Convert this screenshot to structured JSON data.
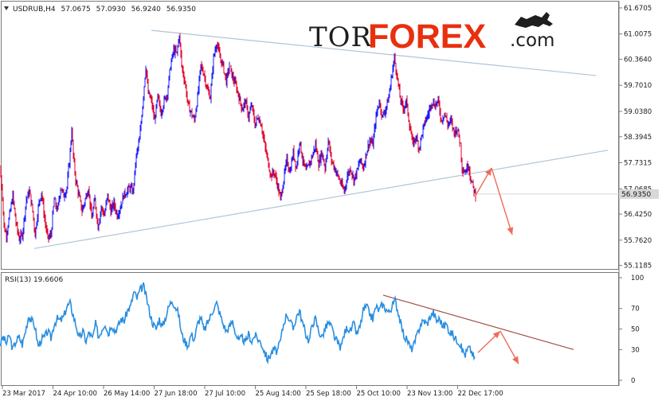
{
  "chart_data": {
    "type": "candlestick",
    "symbol_header": {
      "symbol": "USDRUB,H4",
      "open": "57.0675",
      "high": "57.0930",
      "low": "56.9240",
      "close": "56.9350"
    },
    "price_axis": {
      "ticks": [
        "61.6705",
        "61.0075",
        "60.3640",
        "59.7010",
        "59.0380",
        "58.3945",
        "57.7315",
        "57.0685",
        "56.4250",
        "55.7620",
        "55.1185"
      ],
      "current_price_label": "56.9350",
      "ylim": [
        55.05,
        61.75
      ]
    },
    "time_axis": {
      "ticks": [
        "23 Mar 2017",
        "24 Apr 10:00",
        "26 May 14:00",
        "27 Jun 18:00",
        "27 Jul 10:00",
        "25 Aug 14:00",
        "25 Sep 18:00",
        "25 Oct 10:00",
        "23 Nov 13:00",
        "22 Dec 17:00"
      ]
    },
    "price_series": [
      {
        "t": 0,
        "p": 57.6
      },
      {
        "t": 3,
        "p": 56.9
      },
      {
        "t": 5,
        "p": 56.1
      },
      {
        "t": 8,
        "p": 55.9
      },
      {
        "t": 12,
        "p": 56.4
      },
      {
        "t": 16,
        "p": 56.9
      },
      {
        "t": 20,
        "p": 56.2
      },
      {
        "t": 24,
        "p": 55.8
      },
      {
        "t": 28,
        "p": 55.9
      },
      {
        "t": 33,
        "p": 56.8
      },
      {
        "t": 37,
        "p": 57.0
      },
      {
        "t": 41,
        "p": 56.5
      },
      {
        "t": 44,
        "p": 55.9
      },
      {
        "t": 48,
        "p": 56.6
      },
      {
        "t": 52,
        "p": 57.0
      },
      {
        "t": 56,
        "p": 56.3
      },
      {
        "t": 60,
        "p": 55.8
      },
      {
        "t": 64,
        "p": 55.9
      },
      {
        "t": 68,
        "p": 56.8
      },
      {
        "t": 72,
        "p": 56.5
      },
      {
        "t": 76,
        "p": 57.1
      },
      {
        "t": 80,
        "p": 56.9
      },
      {
        "t": 84,
        "p": 57.1
      },
      {
        "t": 88,
        "p": 58.0
      },
      {
        "t": 90,
        "p": 58.6
      },
      {
        "t": 92,
        "p": 57.9
      },
      {
        "t": 95,
        "p": 57.3
      },
      {
        "t": 99,
        "p": 56.9
      },
      {
        "t": 103,
        "p": 56.5
      },
      {
        "t": 107,
        "p": 56.8
      },
      {
        "t": 111,
        "p": 57.1
      },
      {
        "t": 115,
        "p": 56.3
      },
      {
        "t": 119,
        "p": 56.8
      },
      {
        "t": 123,
        "p": 56.1
      },
      {
        "t": 127,
        "p": 56.6
      },
      {
        "t": 131,
        "p": 56.4
      },
      {
        "t": 135,
        "p": 56.9
      },
      {
        "t": 139,
        "p": 56.5
      },
      {
        "t": 143,
        "p": 56.7
      },
      {
        "t": 147,
        "p": 56.4
      },
      {
        "t": 151,
        "p": 56.6
      },
      {
        "t": 155,
        "p": 56.9
      },
      {
        "t": 159,
        "p": 57.0
      },
      {
        "t": 163,
        "p": 57.1
      },
      {
        "t": 167,
        "p": 57.0
      },
      {
        "t": 171,
        "p": 57.9
      },
      {
        "t": 175,
        "p": 58.3
      },
      {
        "t": 179,
        "p": 59.2
      },
      {
        "t": 183,
        "p": 60.2
      },
      {
        "t": 186,
        "p": 59.5
      },
      {
        "t": 190,
        "p": 59.3
      },
      {
        "t": 194,
        "p": 58.8
      },
      {
        "t": 198,
        "p": 59.4
      },
      {
        "t": 202,
        "p": 59.0
      },
      {
        "t": 206,
        "p": 59.3
      },
      {
        "t": 210,
        "p": 59.5
      },
      {
        "t": 214,
        "p": 60.2
      },
      {
        "t": 218,
        "p": 60.6
      },
      {
        "t": 222,
        "p": 60.5
      },
      {
        "t": 225,
        "p": 61.0
      },
      {
        "t": 228,
        "p": 60.2
      },
      {
        "t": 232,
        "p": 59.8
      },
      {
        "t": 236,
        "p": 59.2
      },
      {
        "t": 240,
        "p": 59.0
      },
      {
        "t": 244,
        "p": 58.8
      },
      {
        "t": 248,
        "p": 59.4
      },
      {
        "t": 252,
        "p": 60.2
      },
      {
        "t": 256,
        "p": 60.0
      },
      {
        "t": 260,
        "p": 59.6
      },
      {
        "t": 264,
        "p": 59.4
      },
      {
        "t": 268,
        "p": 60.4
      },
      {
        "t": 272,
        "p": 60.8
      },
      {
        "t": 276,
        "p": 60.4
      },
      {
        "t": 280,
        "p": 60.2
      },
      {
        "t": 284,
        "p": 59.8
      },
      {
        "t": 288,
        "p": 60.2
      },
      {
        "t": 292,
        "p": 59.9
      },
      {
        "t": 296,
        "p": 59.7
      },
      {
        "t": 300,
        "p": 59.4
      },
      {
        "t": 304,
        "p": 59.1
      },
      {
        "t": 308,
        "p": 59.3
      },
      {
        "t": 312,
        "p": 58.9
      },
      {
        "t": 316,
        "p": 59.2
      },
      {
        "t": 320,
        "p": 58.7
      },
      {
        "t": 324,
        "p": 58.9
      },
      {
        "t": 328,
        "p": 58.7
      },
      {
        "t": 332,
        "p": 58.2
      },
      {
        "t": 336,
        "p": 57.8
      },
      {
        "t": 340,
        "p": 57.4
      },
      {
        "t": 344,
        "p": 57.5
      },
      {
        "t": 348,
        "p": 57.2
      },
      {
        "t": 352,
        "p": 56.8
      },
      {
        "t": 356,
        "p": 57.3
      },
      {
        "t": 360,
        "p": 57.8
      },
      {
        "t": 364,
        "p": 57.5
      },
      {
        "t": 368,
        "p": 58.0
      },
      {
        "t": 372,
        "p": 57.6
      },
      {
        "t": 376,
        "p": 58.3
      },
      {
        "t": 380,
        "p": 57.8
      },
      {
        "t": 384,
        "p": 57.5
      },
      {
        "t": 388,
        "p": 57.7
      },
      {
        "t": 392,
        "p": 57.9
      },
      {
        "t": 396,
        "p": 58.2
      },
      {
        "t": 400,
        "p": 57.7
      },
      {
        "t": 404,
        "p": 58.0
      },
      {
        "t": 408,
        "p": 57.6
      },
      {
        "t": 412,
        "p": 58.3
      },
      {
        "t": 416,
        "p": 57.8
      },
      {
        "t": 420,
        "p": 57.6
      },
      {
        "t": 424,
        "p": 57.4
      },
      {
        "t": 428,
        "p": 57.2
      },
      {
        "t": 432,
        "p": 57.0
      },
      {
        "t": 436,
        "p": 57.4
      },
      {
        "t": 440,
        "p": 57.6
      },
      {
        "t": 444,
        "p": 57.3
      },
      {
        "t": 448,
        "p": 57.5
      },
      {
        "t": 452,
        "p": 57.8
      },
      {
        "t": 456,
        "p": 57.6
      },
      {
        "t": 460,
        "p": 58.0
      },
      {
        "t": 464,
        "p": 58.3
      },
      {
        "t": 468,
        "p": 58.2
      },
      {
        "t": 472,
        "p": 58.9
      },
      {
        "t": 476,
        "p": 59.3
      },
      {
        "t": 480,
        "p": 58.9
      },
      {
        "t": 484,
        "p": 59.1
      },
      {
        "t": 488,
        "p": 59.4
      },
      {
        "t": 492,
        "p": 60.0
      },
      {
        "t": 495,
        "p": 60.4
      },
      {
        "t": 498,
        "p": 60.0
      },
      {
        "t": 502,
        "p": 59.4
      },
      {
        "t": 506,
        "p": 59.1
      },
      {
        "t": 510,
        "p": 59.3
      },
      {
        "t": 514,
        "p": 58.7
      },
      {
        "t": 518,
        "p": 58.2
      },
      {
        "t": 522,
        "p": 58.4
      },
      {
        "t": 526,
        "p": 58.1
      },
      {
        "t": 530,
        "p": 58.5
      },
      {
        "t": 534,
        "p": 58.8
      },
      {
        "t": 538,
        "p": 59.0
      },
      {
        "t": 542,
        "p": 59.3
      },
      {
        "t": 546,
        "p": 59.2
      },
      {
        "t": 550,
        "p": 59.3
      },
      {
        "t": 554,
        "p": 58.8
      },
      {
        "t": 558,
        "p": 59.0
      },
      {
        "t": 562,
        "p": 58.7
      },
      {
        "t": 566,
        "p": 58.8
      },
      {
        "t": 570,
        "p": 58.5
      },
      {
        "t": 574,
        "p": 58.6
      },
      {
        "t": 578,
        "p": 58.2
      },
      {
        "t": 580,
        "p": 57.6
      },
      {
        "t": 584,
        "p": 57.5
      },
      {
        "t": 588,
        "p": 57.7
      },
      {
        "t": 591,
        "p": 57.3
      },
      {
        "t": 594,
        "p": 57.1
      },
      {
        "t": 597,
        "p": 56.9
      }
    ],
    "forecast_arrows": {
      "price": [
        {
          "t": 597,
          "p": 56.9
        },
        {
          "t": 617,
          "p": 57.6
        },
        {
          "t": 643,
          "p": 55.9
        }
      ],
      "rsi": [
        {
          "t": 600,
          "v": 27
        },
        {
          "t": 628,
          "v": 48
        },
        {
          "t": 651,
          "v": 16
        }
      ]
    },
    "trendlines": [
      {
        "name": "resistance",
        "from": {
          "t": 190,
          "p": 61.1
        },
        "to": {
          "t": 748,
          "p": 59.95
        }
      },
      {
        "name": "support",
        "from": {
          "t": 43,
          "p": 55.55
        },
        "to": {
          "t": 763,
          "p": 58.05
        }
      }
    ],
    "rsi": {
      "label": "RSI(13) 19.6606",
      "ticks": [
        "100",
        "70",
        "50",
        "30",
        "0"
      ],
      "ylim": [
        0,
        100
      ],
      "trendline": {
        "from": {
          "t": 481,
          "v": 83
        },
        "to": {
          "t": 720,
          "v": 30
        }
      },
      "series": [
        {
          "t": 0,
          "v": 35
        },
        {
          "t": 4,
          "v": 42
        },
        {
          "t": 8,
          "v": 36
        },
        {
          "t": 12,
          "v": 44
        },
        {
          "t": 16,
          "v": 30
        },
        {
          "t": 20,
          "v": 38
        },
        {
          "t": 24,
          "v": 42
        },
        {
          "t": 28,
          "v": 35
        },
        {
          "t": 32,
          "v": 48
        },
        {
          "t": 36,
          "v": 63
        },
        {
          "t": 40,
          "v": 58
        },
        {
          "t": 44,
          "v": 52
        },
        {
          "t": 48,
          "v": 33
        },
        {
          "t": 52,
          "v": 40
        },
        {
          "t": 56,
          "v": 42
        },
        {
          "t": 60,
          "v": 48
        },
        {
          "t": 64,
          "v": 41
        },
        {
          "t": 68,
          "v": 55
        },
        {
          "t": 72,
          "v": 60
        },
        {
          "t": 76,
          "v": 58
        },
        {
          "t": 80,
          "v": 62
        },
        {
          "t": 84,
          "v": 72
        },
        {
          "t": 88,
          "v": 75
        },
        {
          "t": 92,
          "v": 63
        },
        {
          "t": 96,
          "v": 52
        },
        {
          "t": 100,
          "v": 40
        },
        {
          "t": 104,
          "v": 48
        },
        {
          "t": 108,
          "v": 38
        },
        {
          "t": 112,
          "v": 47
        },
        {
          "t": 116,
          "v": 40
        },
        {
          "t": 120,
          "v": 55
        },
        {
          "t": 124,
          "v": 42
        },
        {
          "t": 128,
          "v": 50
        },
        {
          "t": 132,
          "v": 56
        },
        {
          "t": 136,
          "v": 45
        },
        {
          "t": 140,
          "v": 55
        },
        {
          "t": 144,
          "v": 48
        },
        {
          "t": 148,
          "v": 52
        },
        {
          "t": 152,
          "v": 60
        },
        {
          "t": 156,
          "v": 58
        },
        {
          "t": 160,
          "v": 68
        },
        {
          "t": 164,
          "v": 72
        },
        {
          "t": 168,
          "v": 86
        },
        {
          "t": 172,
          "v": 80
        },
        {
          "t": 176,
          "v": 88
        },
        {
          "t": 180,
          "v": 92
        },
        {
          "t": 184,
          "v": 80
        },
        {
          "t": 188,
          "v": 66
        },
        {
          "t": 192,
          "v": 55
        },
        {
          "t": 196,
          "v": 50
        },
        {
          "t": 200,
          "v": 60
        },
        {
          "t": 204,
          "v": 52
        },
        {
          "t": 208,
          "v": 62
        },
        {
          "t": 212,
          "v": 72
        },
        {
          "t": 216,
          "v": 78
        },
        {
          "t": 220,
          "v": 72
        },
        {
          "t": 224,
          "v": 65
        },
        {
          "t": 228,
          "v": 45
        },
        {
          "t": 232,
          "v": 38
        },
        {
          "t": 236,
          "v": 34
        },
        {
          "t": 240,
          "v": 45
        },
        {
          "t": 244,
          "v": 40
        },
        {
          "t": 248,
          "v": 55
        },
        {
          "t": 252,
          "v": 62
        },
        {
          "t": 256,
          "v": 48
        },
        {
          "t": 260,
          "v": 55
        },
        {
          "t": 264,
          "v": 62
        },
        {
          "t": 268,
          "v": 70
        },
        {
          "t": 272,
          "v": 75
        },
        {
          "t": 276,
          "v": 65
        },
        {
          "t": 280,
          "v": 55
        },
        {
          "t": 284,
          "v": 48
        },
        {
          "t": 288,
          "v": 52
        },
        {
          "t": 292,
          "v": 58
        },
        {
          "t": 296,
          "v": 45
        },
        {
          "t": 300,
          "v": 38
        },
        {
          "t": 304,
          "v": 42
        },
        {
          "t": 308,
          "v": 36
        },
        {
          "t": 312,
          "v": 45
        },
        {
          "t": 316,
          "v": 38
        },
        {
          "t": 320,
          "v": 44
        },
        {
          "t": 324,
          "v": 40
        },
        {
          "t": 328,
          "v": 36
        },
        {
          "t": 332,
          "v": 28
        },
        {
          "t": 336,
          "v": 20
        },
        {
          "t": 340,
          "v": 26
        },
        {
          "t": 344,
          "v": 30
        },
        {
          "t": 348,
          "v": 28
        },
        {
          "t": 352,
          "v": 38
        },
        {
          "t": 356,
          "v": 55
        },
        {
          "t": 360,
          "v": 65
        },
        {
          "t": 364,
          "v": 58
        },
        {
          "t": 368,
          "v": 50
        },
        {
          "t": 372,
          "v": 62
        },
        {
          "t": 376,
          "v": 68
        },
        {
          "t": 380,
          "v": 55
        },
        {
          "t": 384,
          "v": 45
        },
        {
          "t": 388,
          "v": 38
        },
        {
          "t": 392,
          "v": 55
        },
        {
          "t": 396,
          "v": 60
        },
        {
          "t": 400,
          "v": 48
        },
        {
          "t": 404,
          "v": 42
        },
        {
          "t": 408,
          "v": 50
        },
        {
          "t": 412,
          "v": 56
        },
        {
          "t": 416,
          "v": 52
        },
        {
          "t": 420,
          "v": 42
        },
        {
          "t": 424,
          "v": 36
        },
        {
          "t": 428,
          "v": 32
        },
        {
          "t": 432,
          "v": 45
        },
        {
          "t": 436,
          "v": 52
        },
        {
          "t": 440,
          "v": 48
        },
        {
          "t": 444,
          "v": 55
        },
        {
          "t": 448,
          "v": 45
        },
        {
          "t": 452,
          "v": 52
        },
        {
          "t": 456,
          "v": 68
        },
        {
          "t": 460,
          "v": 72
        },
        {
          "t": 464,
          "v": 65
        },
        {
          "t": 468,
          "v": 60
        },
        {
          "t": 472,
          "v": 72
        },
        {
          "t": 476,
          "v": 68
        },
        {
          "t": 480,
          "v": 74
        },
        {
          "t": 484,
          "v": 70
        },
        {
          "t": 488,
          "v": 66
        },
        {
          "t": 492,
          "v": 72
        },
        {
          "t": 496,
          "v": 78
        },
        {
          "t": 500,
          "v": 66
        },
        {
          "t": 504,
          "v": 52
        },
        {
          "t": 508,
          "v": 42
        },
        {
          "t": 512,
          "v": 38
        },
        {
          "t": 516,
          "v": 30
        },
        {
          "t": 520,
          "v": 35
        },
        {
          "t": 524,
          "v": 45
        },
        {
          "t": 528,
          "v": 55
        },
        {
          "t": 532,
          "v": 58
        },
        {
          "t": 536,
          "v": 55
        },
        {
          "t": 540,
          "v": 62
        },
        {
          "t": 544,
          "v": 66
        },
        {
          "t": 548,
          "v": 58
        },
        {
          "t": 552,
          "v": 60
        },
        {
          "t": 556,
          "v": 52
        },
        {
          "t": 560,
          "v": 55
        },
        {
          "t": 564,
          "v": 48
        },
        {
          "t": 568,
          "v": 45
        },
        {
          "t": 572,
          "v": 40
        },
        {
          "t": 576,
          "v": 38
        },
        {
          "t": 580,
          "v": 30
        },
        {
          "t": 584,
          "v": 25
        },
        {
          "t": 588,
          "v": 32
        },
        {
          "t": 592,
          "v": 28
        },
        {
          "t": 596,
          "v": 20
        }
      ]
    }
  },
  "brand": {
    "part1": "TOR",
    "part2": "FOREX",
    "part3": ".com"
  },
  "colors": {
    "bull_candle": "#1a1aff",
    "bear_candle": "#e0002a",
    "rsi_line": "#2b8fe0",
    "rsi_trendline": "#a0524a",
    "trendline": "#b0c4d6",
    "forecast_arrow": "#f06a5a",
    "axis": "#7a7a7a",
    "text": "#1a1a1a",
    "logo_dark": "#1e1e1e",
    "logo_red": "#e8300f",
    "current_price_bg": "#d8d8d8"
  }
}
